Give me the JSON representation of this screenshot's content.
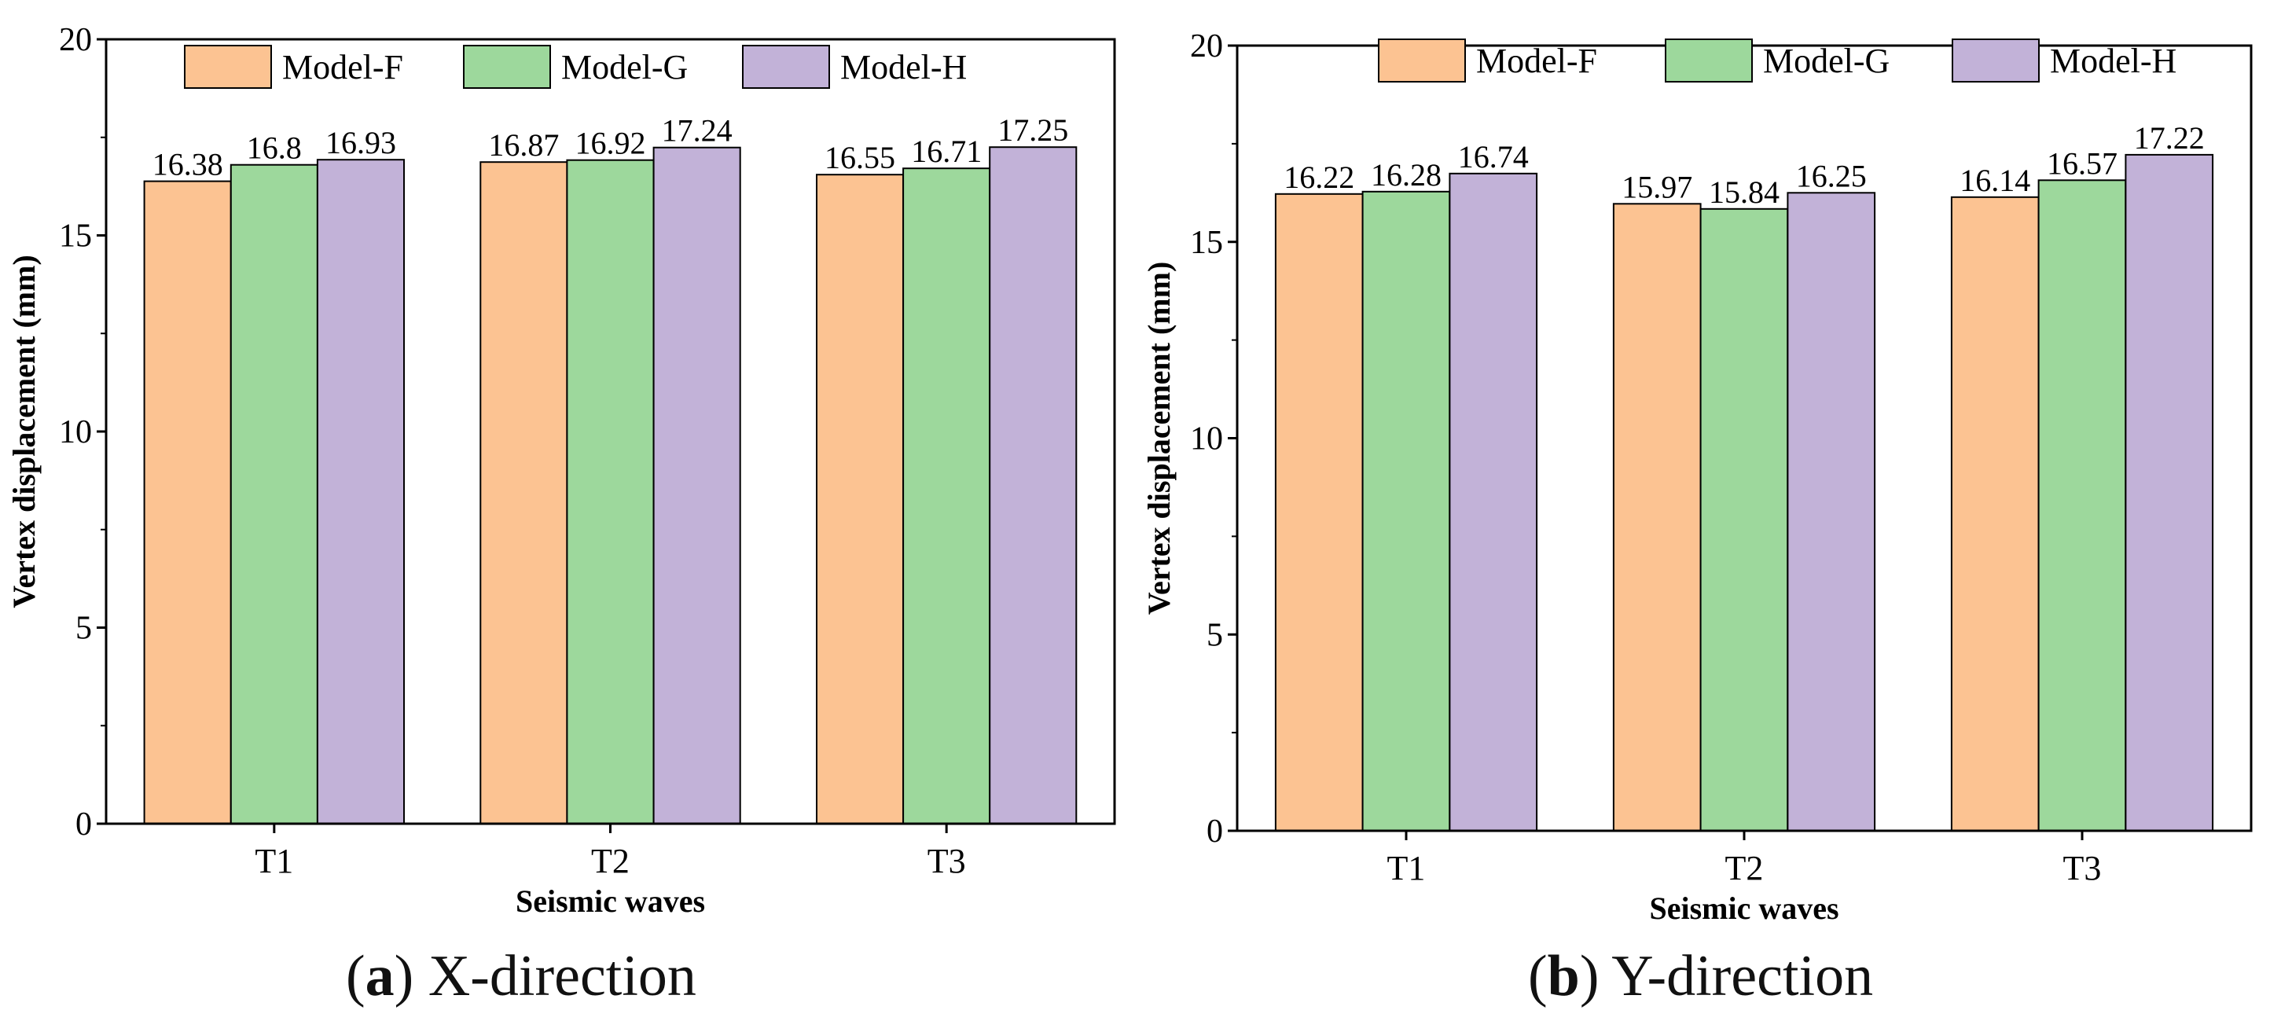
{
  "figure": {
    "colors": {
      "Model-F": "#FCC392",
      "Model-G": "#9DD89C",
      "Model-H": "#C2B2D8",
      "axis": "#000000",
      "edge": "#000000"
    }
  },
  "chart_data": [
    {
      "type": "bar",
      "title": "",
      "caption_letter": "a",
      "caption_text": "X-direction",
      "xlabel": "Seismic waves",
      "ylabel": "Vertex displacement (mm)",
      "categories": [
        "T1",
        "T2",
        "T3"
      ],
      "ylim": [
        0,
        20
      ],
      "yticks": [
        0,
        5,
        10,
        15,
        20
      ],
      "legend_position": "top",
      "grid": false,
      "series": [
        {
          "name": "Model-F",
          "values": [
            16.38,
            16.87,
            16.55
          ],
          "labels": [
            "16.38",
            "16.87",
            "16.55"
          ]
        },
        {
          "name": "Model-G",
          "values": [
            16.8,
            16.92,
            16.71
          ],
          "labels": [
            "16.8",
            "16.92",
            "16.71"
          ]
        },
        {
          "name": "Model-H",
          "values": [
            16.93,
            17.24,
            17.25
          ],
          "labels": [
            "16.93",
            "17.24",
            "17.25"
          ]
        }
      ]
    },
    {
      "type": "bar",
      "title": "",
      "caption_letter": "b",
      "caption_text": "Y-direction",
      "xlabel": "Seismic waves",
      "ylabel": "Vertex displacement (mm)",
      "categories": [
        "T1",
        "T2",
        "T3"
      ],
      "ylim": [
        0,
        20
      ],
      "yticks": [
        0,
        5,
        10,
        15,
        20
      ],
      "legend_position": "top",
      "grid": false,
      "series": [
        {
          "name": "Model-F",
          "values": [
            16.22,
            15.97,
            16.14
          ],
          "labels": [
            "16.22",
            "15.97",
            "16.14"
          ]
        },
        {
          "name": "Model-G",
          "values": [
            16.28,
            15.84,
            16.57
          ],
          "labels": [
            "16.28",
            "15.84",
            "16.57"
          ]
        },
        {
          "name": "Model-H",
          "values": [
            16.74,
            16.25,
            17.22
          ],
          "labels": [
            "16.74",
            "16.25",
            "17.22"
          ]
        }
      ]
    }
  ]
}
